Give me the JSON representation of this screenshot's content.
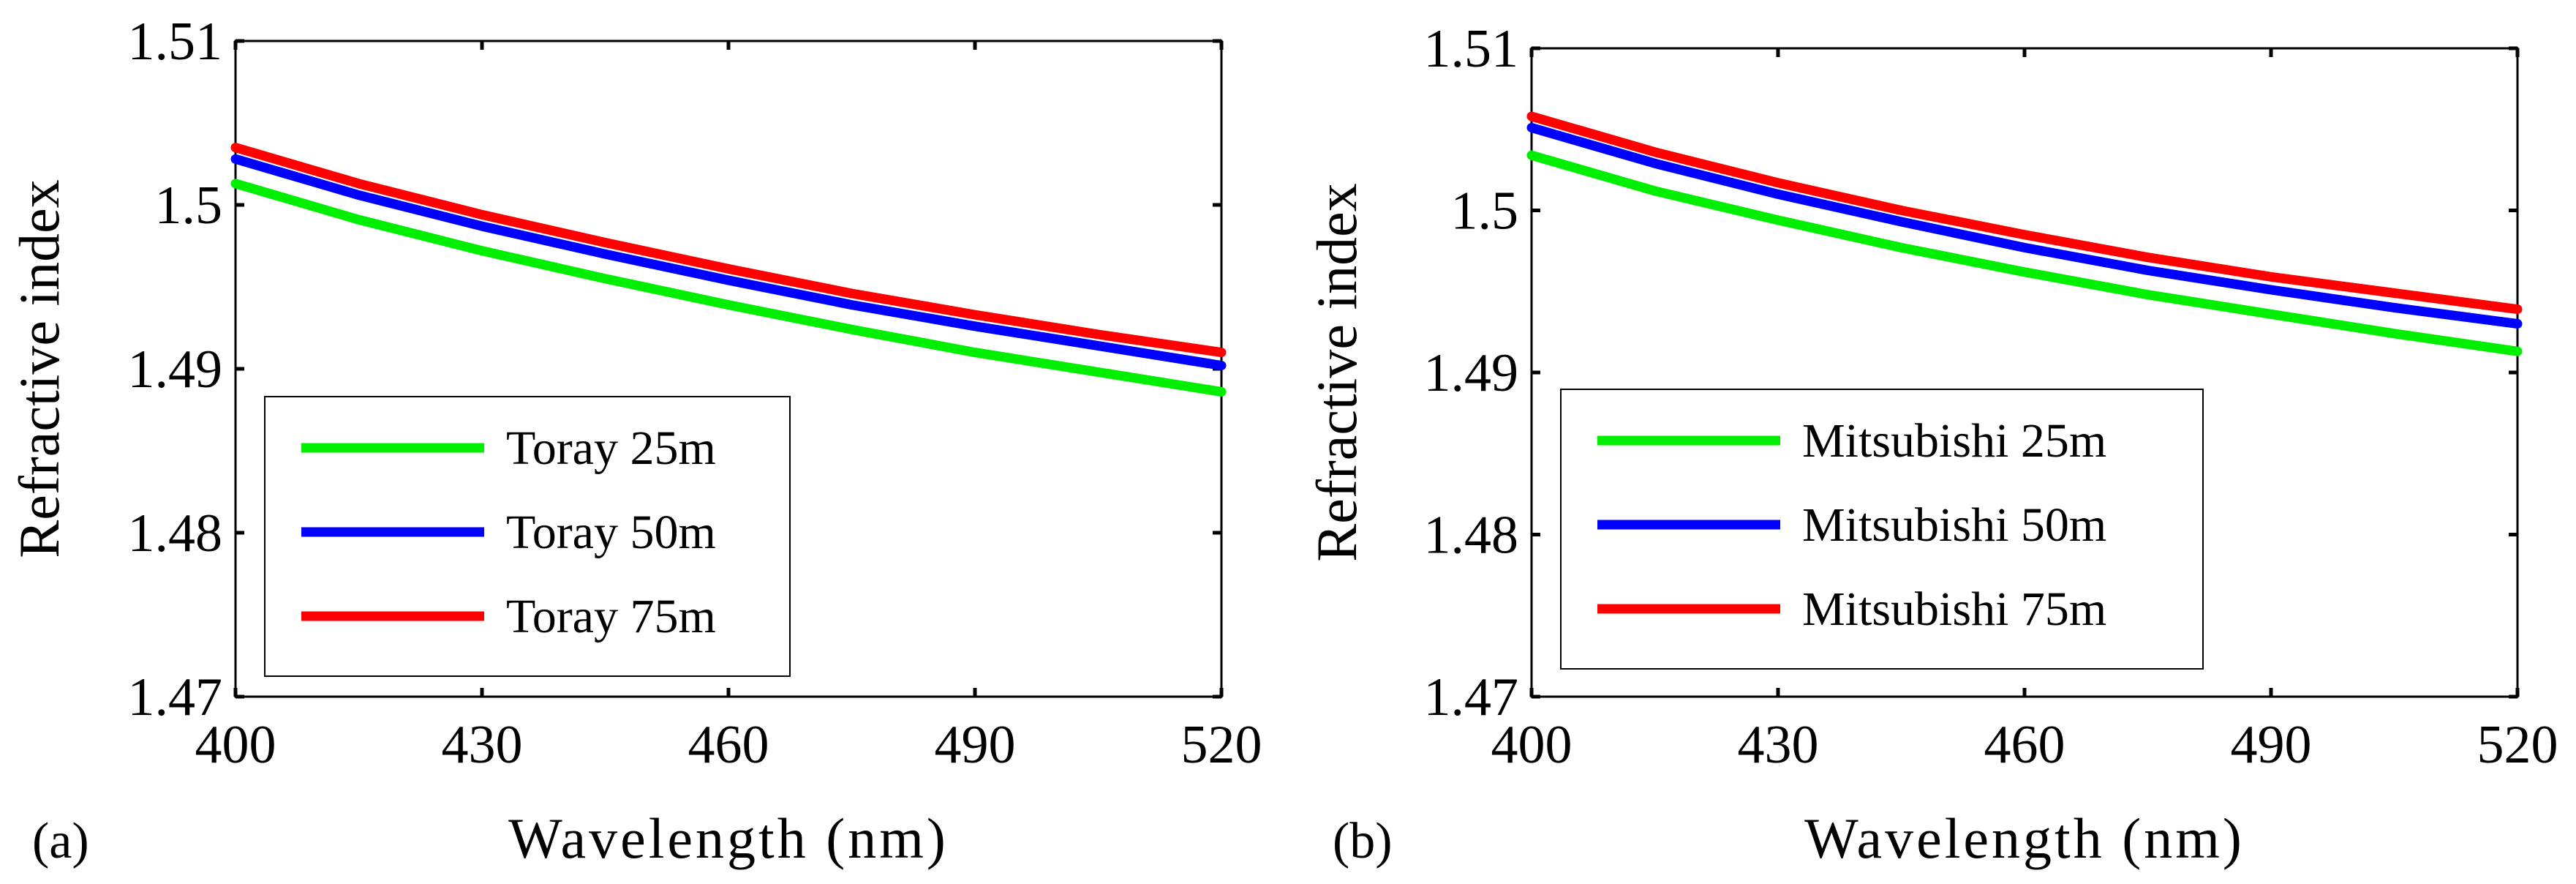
{
  "chart_data": [
    {
      "panel_label": "(a)",
      "type": "line",
      "xlabel": "Wavelength (nm)",
      "ylabel": "Refractive index",
      "xlim": [
        400,
        520
      ],
      "ylim": [
        1.47,
        1.51
      ],
      "xticks": [
        400,
        430,
        460,
        490,
        520
      ],
      "yticks": [
        1.47,
        1.48,
        1.49,
        1.5,
        1.51
      ],
      "xtick_labels": [
        "400",
        "430",
        "460",
        "490",
        "520"
      ],
      "ytick_labels": [
        "1.47",
        "1.48",
        "1.49",
        "1.5",
        "1.51"
      ],
      "legend_position": "lower-left",
      "x": [
        400,
        415,
        430,
        445,
        460,
        475,
        490,
        505,
        520
      ],
      "series": [
        {
          "name": "Toray 25m",
          "color": "#00ee00",
          "values": [
            1.5013,
            1.4991,
            1.4972,
            1.4955,
            1.4939,
            1.4924,
            1.491,
            1.4898,
            1.4886
          ]
        },
        {
          "name": "Toray 50m",
          "color": "#0000ff",
          "values": [
            1.5028,
            1.5006,
            1.4987,
            1.497,
            1.4954,
            1.4939,
            1.4926,
            1.4914,
            1.4902
          ]
        },
        {
          "name": "Toray 75m",
          "color": "#ff0000",
          "values": [
            1.5035,
            1.5013,
            1.4994,
            1.4977,
            1.4961,
            1.4946,
            1.4933,
            1.4921,
            1.491
          ]
        }
      ]
    },
    {
      "panel_label": "(b)",
      "type": "line",
      "xlabel": "Wavelength (nm)",
      "ylabel": "Refractive index",
      "xlim": [
        400,
        520
      ],
      "ylim": [
        1.47,
        1.51
      ],
      "xticks": [
        400,
        430,
        460,
        490,
        520
      ],
      "yticks": [
        1.47,
        1.48,
        1.49,
        1.5,
        1.51
      ],
      "xtick_labels": [
        "400",
        "430",
        "460",
        "490",
        "520"
      ],
      "ytick_labels": [
        "1.47",
        "1.48",
        "1.49",
        "1.5",
        "1.51"
      ],
      "legend_position": "lower-left",
      "x": [
        400,
        415,
        430,
        445,
        460,
        475,
        490,
        505,
        520
      ],
      "series": [
        {
          "name": "Mitsubishi 25m",
          "color": "#00ee00",
          "values": [
            1.5034,
            1.5012,
            1.4994,
            1.4977,
            1.4962,
            1.4948,
            1.4936,
            1.4924,
            1.4913
          ]
        },
        {
          "name": "Mitsubishi 50m",
          "color": "#0000ff",
          "values": [
            1.5051,
            1.5029,
            1.501,
            1.4993,
            1.4977,
            1.4963,
            1.4951,
            1.494,
            1.493
          ]
        },
        {
          "name": "Mitsubishi 75m",
          "color": "#ff0000",
          "values": [
            1.5058,
            1.5036,
            1.5017,
            1.5,
            1.4985,
            1.4971,
            1.4959,
            1.4949,
            1.4939
          ]
        }
      ]
    }
  ]
}
